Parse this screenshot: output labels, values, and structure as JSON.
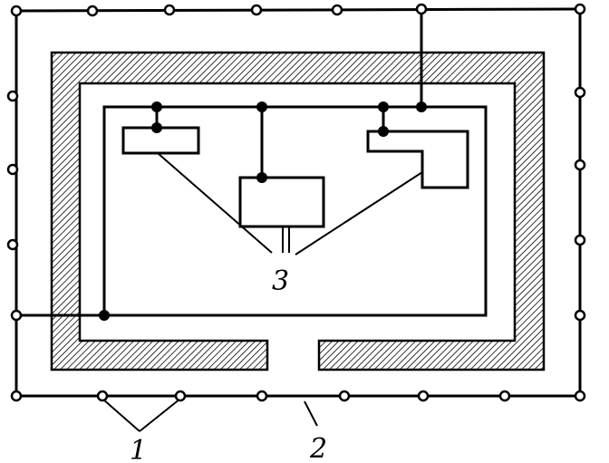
{
  "labels": {
    "electrodes": "1",
    "conductor": "2",
    "equipment": "3"
  },
  "colors": {
    "ink": "#000000",
    "paper": "#ffffff"
  }
}
